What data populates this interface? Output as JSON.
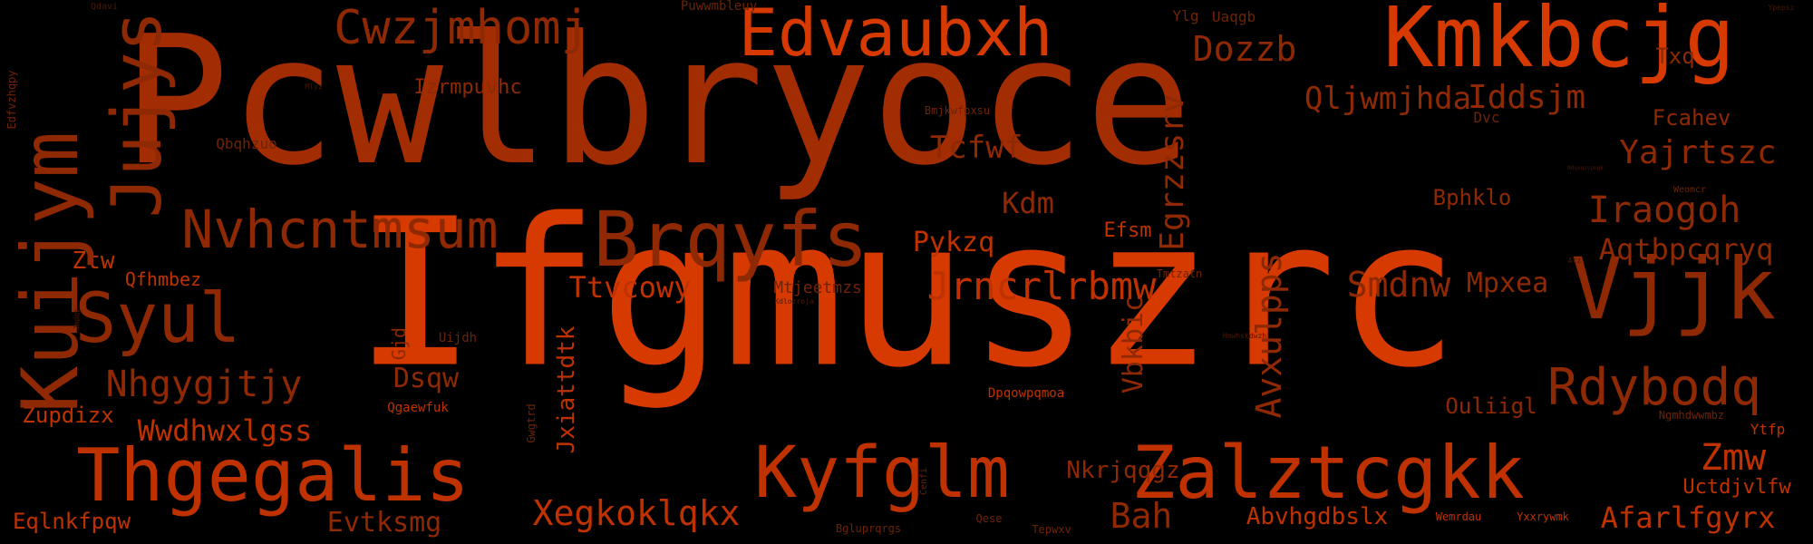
{
  "colors": {
    "background": "#000000",
    "bright": "#d63a00",
    "mid": "#bf3200",
    "dark": "#a32d03",
    "deep": "#8f2903",
    "dim": "#6e2305",
    "faint": "#4a1804"
  },
  "words": [
    {
      "text": "Pcwlbryoce",
      "tone": "dark"
    },
    {
      "text": "Ifgmuszrc",
      "tone": "bright"
    },
    {
      "text": "Kmkbcjg",
      "tone": "bright"
    },
    {
      "text": "Edvaubxh",
      "tone": "bright"
    },
    {
      "text": "Cwzjmhomj",
      "tone": "deep"
    },
    {
      "text": "Izrmpuvhc",
      "tone": "deep"
    },
    {
      "text": "Dozzb",
      "tone": "deep"
    },
    {
      "text": "Qljwmjhda",
      "tone": "deep"
    },
    {
      "text": "Iddsjm",
      "tone": "deep"
    },
    {
      "text": "Txq",
      "tone": "deep"
    },
    {
      "text": "Fcahev",
      "tone": "deep"
    },
    {
      "text": "Yajrtszc",
      "tone": "deep"
    },
    {
      "text": "Iraogoh",
      "tone": "deep"
    },
    {
      "text": "Aqtbpcqryq",
      "tone": "deep"
    },
    {
      "text": "Vjjk",
      "tone": "deep"
    },
    {
      "text": "Rdybodq",
      "tone": "deep"
    },
    {
      "text": "Mpxea",
      "tone": "deep"
    },
    {
      "text": "Smdnw",
      "tone": "deep"
    },
    {
      "text": "Zalztcgkk",
      "tone": "mid"
    },
    {
      "text": "Zmw",
      "tone": "mid"
    },
    {
      "text": "Afarlfgyrx",
      "tone": "mid"
    },
    {
      "text": "Uctdjvlfw",
      "tone": "mid"
    },
    {
      "text": "Bah",
      "tone": "deep"
    },
    {
      "text": "Abvhgdbslx",
      "tone": "mid"
    },
    {
      "text": "Nkrjqqgz",
      "tone": "deep"
    },
    {
      "text": "Kyfglm",
      "tone": "mid"
    },
    {
      "text": "Xegkoklqkx",
      "tone": "mid"
    },
    {
      "text": "Thgegalis",
      "tone": "mid"
    },
    {
      "text": "Evtksmg",
      "tone": "deep"
    },
    {
      "text": "Eqlnkfpqw",
      "tone": "mid"
    },
    {
      "text": "Wwdhwxlgss",
      "tone": "mid"
    },
    {
      "text": "Zupdizx",
      "tone": "mid"
    },
    {
      "text": "Nhgygjtjy",
      "tone": "deep"
    },
    {
      "text": "Syul",
      "tone": "deep"
    },
    {
      "text": "Qfhmbez",
      "tone": "mid"
    },
    {
      "text": "Ztw",
      "tone": "mid"
    },
    {
      "text": "Nvhcntmsum",
      "tone": "deep"
    },
    {
      "text": "Brqyfs",
      "tone": "deep"
    },
    {
      "text": "Ttvcowy",
      "tone": "mid"
    },
    {
      "text": "Dsqw",
      "tone": "deep"
    },
    {
      "text": "Jrncrlrbmw",
      "tone": "mid"
    },
    {
      "text": "Pykzq",
      "tone": "mid"
    },
    {
      "text": "Tcfwf",
      "tone": "deep"
    },
    {
      "text": "Kdm",
      "tone": "deep"
    },
    {
      "text": "Efsm",
      "tone": "mid"
    },
    {
      "text": "Bphklo",
      "tone": "deep"
    },
    {
      "text": "Mtjeetmzs",
      "tone": "dim"
    },
    {
      "text": "Ouliigl",
      "tone": "deep"
    },
    {
      "text": "Qbqhzuo",
      "tone": "dim"
    },
    {
      "text": "Qgaewfuk",
      "tone": "mid"
    },
    {
      "text": "Uijdh",
      "tone": "dim"
    },
    {
      "text": "Dpqowpqmoa",
      "tone": "mid"
    },
    {
      "text": "Bgluprqrgs",
      "tone": "dim"
    },
    {
      "text": "Qese",
      "tone": "dim"
    },
    {
      "text": "Tepwxv",
      "tone": "dim"
    },
    {
      "text": "Wemrdau",
      "tone": "mid"
    },
    {
      "text": "Yxxrywmk",
      "tone": "mid"
    },
    {
      "text": "Ytfp",
      "tone": "mid"
    },
    {
      "text": "Ngmhdwwmbz",
      "tone": "dim"
    },
    {
      "text": "Weomcr",
      "tone": "dim"
    },
    {
      "text": "Bmjkwfpxsu",
      "tone": "dim"
    },
    {
      "text": "Ylg",
      "tone": "dim"
    },
    {
      "text": "Uaqgb",
      "tone": "dim"
    },
    {
      "text": "Dvc",
      "tone": "dim"
    },
    {
      "text": "Tmtzatn",
      "tone": "dim"
    },
    {
      "text": "Puwwmbleuy",
      "tone": "dim"
    },
    {
      "text": "Qdavi",
      "tone": "faint"
    },
    {
      "text": "Mlyz",
      "tone": "faint"
    },
    {
      "text": "Kdlozroja",
      "tone": "faint"
    },
    {
      "text": "Hmwhskdwzh",
      "tone": "faint"
    },
    {
      "text": "Ypepsz",
      "tone": "faint"
    },
    {
      "text": "Atz",
      "tone": "faint"
    },
    {
      "text": "Ndqxqzvpmgk",
      "tone": "faint"
    },
    {
      "text": "Kuijym",
      "tone": "deep"
    },
    {
      "text": "Jujys",
      "tone": "deep"
    },
    {
      "text": "Egrzzsrv",
      "tone": "deep"
    },
    {
      "text": "Avxulpps",
      "tone": "deep"
    },
    {
      "text": "Vbkbic",
      "tone": "deep"
    },
    {
      "text": "Jxiattdtk",
      "tone": "mid"
    },
    {
      "text": "Gjd",
      "tone": "deep"
    },
    {
      "text": "Gwgtrd",
      "tone": "dim"
    },
    {
      "text": "Cenfi",
      "tone": "dim"
    },
    {
      "text": "Edfvzhqpy",
      "tone": "dim"
    },
    {
      "text": "Jmpqp",
      "tone": "faint"
    }
  ]
}
